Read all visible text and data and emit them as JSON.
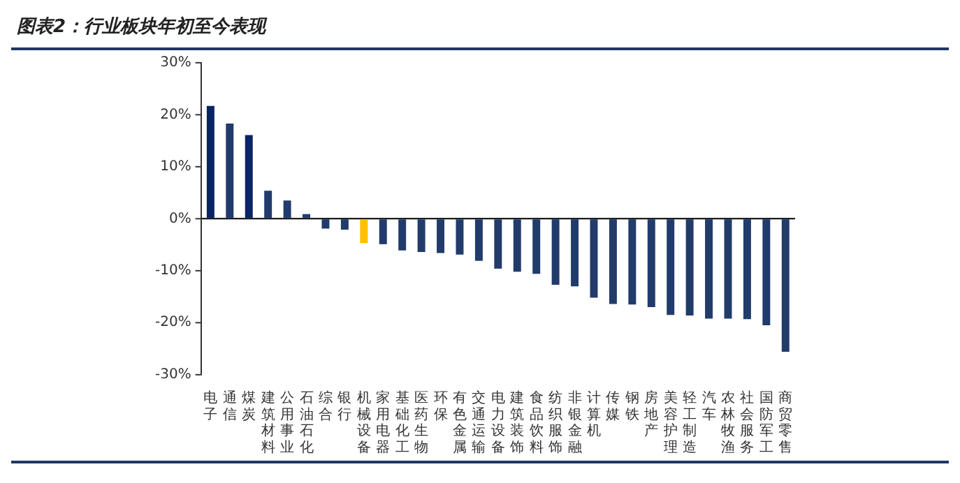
{
  "chart_data": {
    "type": "bar",
    "title": "图表2：行业板块年初至今表现",
    "categories": [
      "电子",
      "通信",
      "煤炭",
      "建筑材料",
      "公用事业",
      "石油石化",
      "综合",
      "银行",
      "机械设备",
      "家用电器",
      "基础化工",
      "医药生物",
      "环保",
      "有色金属",
      "交通运输",
      "电力设备",
      "建筑装饰",
      "食品饮料",
      "纺织服饰",
      "非银金融",
      "计算机",
      "传媒",
      "钢铁",
      "房地产",
      "美容护理",
      "轻工制造",
      "汽车",
      "农林牧渔",
      "社会服务",
      "国防军工",
      "商贸零售"
    ],
    "values": [
      21.7,
      18.3,
      16.1,
      5.4,
      3.5,
      0.9,
      -1.9,
      -2.1,
      -4.7,
      -4.9,
      -6.1,
      -6.4,
      -6.6,
      -6.9,
      -8.1,
      -9.6,
      -10.2,
      -10.6,
      -12.7,
      -13.0,
      -15.2,
      -16.4,
      -16.5,
      -17.0,
      -18.5,
      -18.6,
      -19.2,
      -19.2,
      -19.3,
      -20.5,
      -25.6
    ],
    "colors": [
      "#0b2463",
      "#213b6b",
      "#0b2463",
      "#213b6b",
      "#213b6b",
      "#213b6b",
      "#213b6b",
      "#213b6b",
      "#ffc000",
      "#213b6b",
      "#213b6b",
      "#213b6b",
      "#213b6b",
      "#213b6b",
      "#213b6b",
      "#213b6b",
      "#213b6b",
      "#213b6b",
      "#213b6b",
      "#213b6b",
      "#213b6b",
      "#213b6b",
      "#213b6b",
      "#213b6b",
      "#213b6b",
      "#213b6b",
      "#213b6b",
      "#213b6b",
      "#213b6b",
      "#213b6b",
      "#213b6b"
    ],
    "ylim": [
      -30,
      30
    ],
    "yticks": [
      {
        "value": -30,
        "label": "-30%"
      },
      {
        "value": -20,
        "label": "-20%"
      },
      {
        "value": -10,
        "label": "-10%"
      },
      {
        "value": 0,
        "label": "0%"
      },
      {
        "value": 10,
        "label": "10%"
      },
      {
        "value": 20,
        "label": "20%"
      },
      {
        "value": 30,
        "label": "30%"
      }
    ]
  }
}
